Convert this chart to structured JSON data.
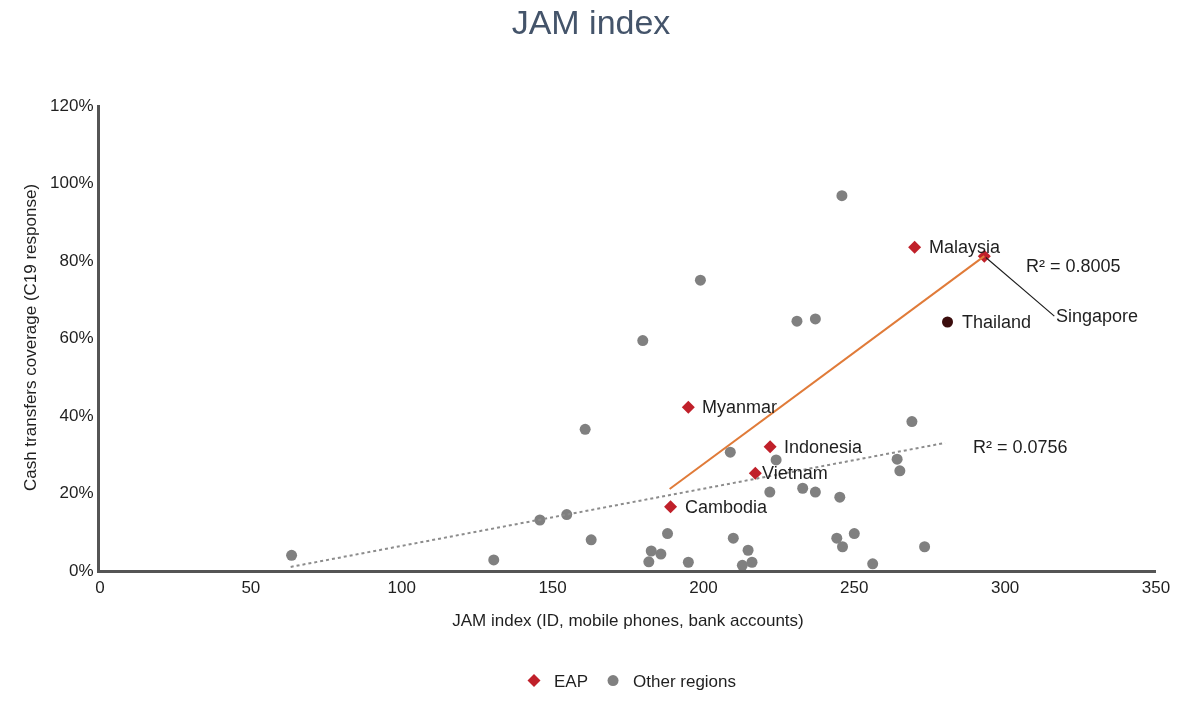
{
  "chart_data": {
    "type": "scatter",
    "title": "JAM index",
    "xlabel": "JAM index (ID, mobile phones, bank accounts)",
    "ylabel": "Cash transfers coverage (C19 response)",
    "xlim": [
      0,
      350
    ],
    "xticks": [
      0,
      50,
      100,
      150,
      200,
      250,
      300,
      350
    ],
    "ylim": [
      0,
      120
    ],
    "yticks": [
      {
        "value": 0,
        "label": "0%"
      },
      {
        "value": 20,
        "label": "20%"
      },
      {
        "value": 40,
        "label": "40%"
      },
      {
        "value": 60,
        "label": "60%"
      },
      {
        "value": 80,
        "label": "80%"
      },
      {
        "value": 100,
        "label": "100%"
      },
      {
        "value": 120,
        "label": "120%"
      }
    ],
    "grid": false,
    "legend": "bottom",
    "series": [
      {
        "name": "EAP",
        "color": "#c0202a",
        "marker": "diamond",
        "x": [
          270.0,
          293.1,
          195.0,
          222.1,
          217.2,
          189.1
        ],
        "values": [
          83.3,
          81.0,
          42.0,
          31.8,
          25.0,
          16.3
        ]
      },
      {
        "color": "#3b0d0d",
        "marker": "circle",
        "x": [
          280.9
        ],
        "values": [
          64.0
        ]
      },
      {
        "name": "Other regions",
        "color": "#808080",
        "marker": "circle",
        "x": [
          63.5,
          130.5,
          145.8,
          154.7,
          160.8,
          162.8,
          269.1,
          208.9,
          224.1,
          264.2,
          265.1,
          222.0,
          232.9,
          237.1,
          245.2,
          188.1,
          209.9,
          244.2,
          250.0,
          273.3,
          246.1,
          182.7,
          185.9,
          214.8,
          181.9,
          195.0,
          212.9,
          216.1,
          256.1,
          245.9,
          199.0,
          231.0,
          237.1,
          179.9
        ],
        "values": [
          3.8,
          2.6,
          12.9,
          14.3,
          36.3,
          7.8,
          38.3,
          30.4,
          28.4,
          28.6,
          25.6,
          20.1,
          21.1,
          20.1,
          18.8,
          9.4,
          8.2,
          8.2,
          9.4,
          6.0,
          6.0,
          4.9,
          4.1,
          5.1,
          2.1,
          2.0,
          1.2,
          2.0,
          1.6,
          96.6,
          74.8,
          64.2,
          64.8,
          59.2
        ]
      },
      {
        "type": "line",
        "color": "#e07b39",
        "marker": "none",
        "line_style": "solid",
        "x": [
          188.8,
          293.1
        ],
        "values": [
          20.9,
          81.0
        ]
      },
      {
        "type": "line",
        "color": "#8c8c8c",
        "marker": "none",
        "line_style": "dotted",
        "x": [
          63.2,
          280.1
        ],
        "values": [
          0.8,
          32.8
        ]
      }
    ],
    "annotations": [
      {
        "text": "Malaysia",
        "x": 270.0,
        "y": 83.3
      },
      {
        "text": "Singapore",
        "x": 293.1,
        "y": 81.0
      },
      {
        "text": "Thailand",
        "x": 280.9,
        "y": 64.0
      },
      {
        "text": "Myanmar",
        "x": 195.0,
        "y": 42.0
      },
      {
        "text": "Indonesia",
        "x": 222.1,
        "y": 31.8
      },
      {
        "text": "Vietnam",
        "x": 217.2,
        "y": 25.0
      },
      {
        "text": "Cambodia",
        "x": 189.1,
        "y": 16.3
      },
      {
        "text": "R² = 0.8005",
        "x": 293.1,
        "y": 81.0
      },
      {
        "text": "R² = 0.0756",
        "x": 280.1,
        "y": 32.8
      }
    ]
  }
}
